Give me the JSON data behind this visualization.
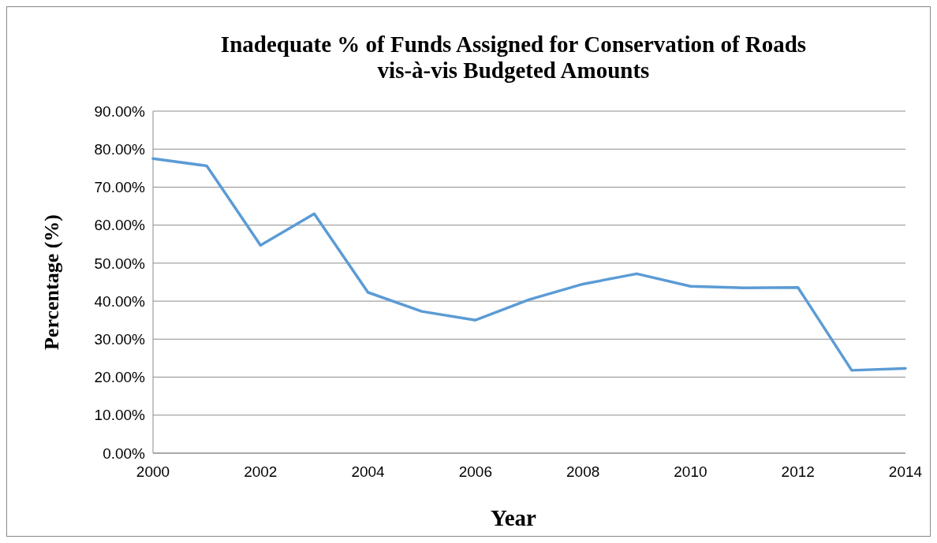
{
  "chart_data": {
    "type": "line",
    "title": "Inadequate % of Funds Assigned for Conservation of Roads\nvis-à-vis Budgeted Amounts",
    "xlabel": "Year",
    "ylabel": "Percentage (%)",
    "x": [
      2000,
      2001,
      2002,
      2003,
      2004,
      2005,
      2006,
      2007,
      2008,
      2009,
      2010,
      2011,
      2012,
      2013,
      2014
    ],
    "series": [
      {
        "color": "#5b9bd5",
        "values": [
          77.5,
          75.6,
          54.7,
          63.0,
          42.3,
          37.3,
          35.0,
          40.4,
          44.5,
          47.2,
          43.9,
          43.5,
          43.6,
          21.8,
          22.3
        ]
      }
    ],
    "xlim": [
      2000,
      2014
    ],
    "xticks": [
      2000,
      2002,
      2004,
      2006,
      2008,
      2010,
      2012,
      2014
    ],
    "ylim": [
      0,
      90
    ],
    "yticks": [
      {
        "value": 0,
        "label": "0.00%"
      },
      {
        "value": 10,
        "label": "10.00%"
      },
      {
        "value": 20,
        "label": "20.00%"
      },
      {
        "value": 30,
        "label": "30.00%"
      },
      {
        "value": 40,
        "label": "40.00%"
      },
      {
        "value": 50,
        "label": "50.00%"
      },
      {
        "value": 60,
        "label": "60.00%"
      },
      {
        "value": 70,
        "label": "70.00%"
      },
      {
        "value": 80,
        "label": "80.00%"
      },
      {
        "value": 90,
        "label": "90.00%"
      }
    ],
    "grid": "y",
    "marker": "none",
    "line_style": "solid"
  }
}
